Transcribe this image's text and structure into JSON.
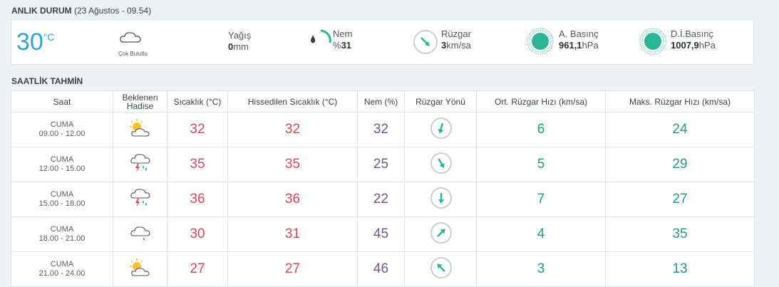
{
  "current": {
    "section_title": "ANLIK DURUM",
    "section_sub": "(23 Ağustos - 09.54)",
    "temp": "30",
    "temp_unit": "°C",
    "condition": "Çok Bulutlu",
    "rain_label": "Yağış",
    "rain_value": "0",
    "rain_unit": "mm",
    "humidity_label": "Nem",
    "humidity_prefix": "%",
    "humidity_value": "31",
    "humidity_level": 0.31,
    "wind_label": "Rüzgar",
    "wind_value": "3",
    "wind_unit": "km/sa",
    "pressure_label": "A. Basınç",
    "pressure_value": "961,1",
    "pressure_unit": "hPa",
    "sea_pressure_label": "D.İ.Basınç",
    "sea_pressure_value": "1007,9",
    "sea_pressure_unit": "hPa",
    "colors": {
      "accent": "#32a3d6",
      "green": "#2bb596"
    }
  },
  "hourly": {
    "section_title": "SAATLİK TAHMİN",
    "headers": {
      "time": "Saat",
      "event_line1": "Beklenen",
      "event_line2": "Hadise",
      "temp": "Sıcaklık (°C)",
      "feels": "Hissedilen Sıcaklık (°C)",
      "humidity": "Nem (%)",
      "wind_dir": "Rüzgar Yönü",
      "avg_wind": "Ort. Rüzgar Hızı (km/sa)",
      "max_wind": "Maks. Rüzgar Hızı (km/sa)"
    },
    "rows": [
      {
        "day": "CUMA",
        "range": "09.00 - 12.00",
        "icon": "partly-cloudy-sun-icon",
        "temp": "32",
        "feels": "32",
        "humidity": "32",
        "wind_rotation": 195,
        "avg": "6",
        "max": "24"
      },
      {
        "day": "CUMA",
        "range": "12.00 - 15.00",
        "icon": "thunderstorm-icon",
        "temp": "35",
        "feels": "35",
        "humidity": "25",
        "wind_rotation": 150,
        "avg": "5",
        "max": "29"
      },
      {
        "day": "CUMA",
        "range": "15.00 - 18.00",
        "icon": "thunderstorm-icon",
        "temp": "36",
        "feels": "36",
        "humidity": "22",
        "wind_rotation": 180,
        "avg": "7",
        "max": "27"
      },
      {
        "day": "CUMA",
        "range": "18.00 - 21.00",
        "icon": "cloud-rain-icon",
        "temp": "30",
        "feels": "31",
        "humidity": "45",
        "wind_rotation": 45,
        "avg": "4",
        "max": "35"
      },
      {
        "day": "CUMA",
        "range": "21.00 - 24.00",
        "icon": "partly-cloudy-sun-icon",
        "temp": "27",
        "feels": "27",
        "humidity": "46",
        "wind_rotation": 315,
        "avg": "3",
        "max": "13"
      }
    ]
  }
}
